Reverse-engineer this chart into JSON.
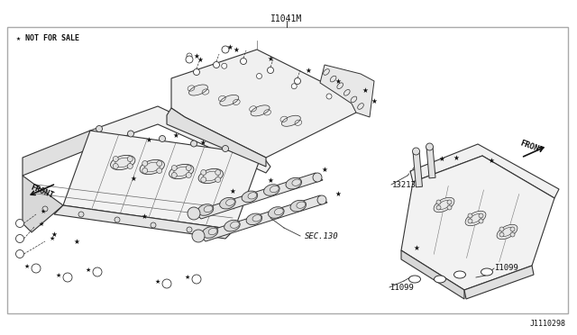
{
  "title_above": "I1041M",
  "watermark": "★ NOT FOR SALE",
  "part_id_bottom_right": "J1110298",
  "label_sec130": "SEC.130",
  "label_13213": "13213",
  "label_I1099_left": "I1099",
  "label_I1099_right": "I1099",
  "label_front_left": "FRONT",
  "label_front_right": "FRONT",
  "bg_color": "#ffffff",
  "fig_width": 6.4,
  "fig_height": 3.72,
  "dpi": 100
}
